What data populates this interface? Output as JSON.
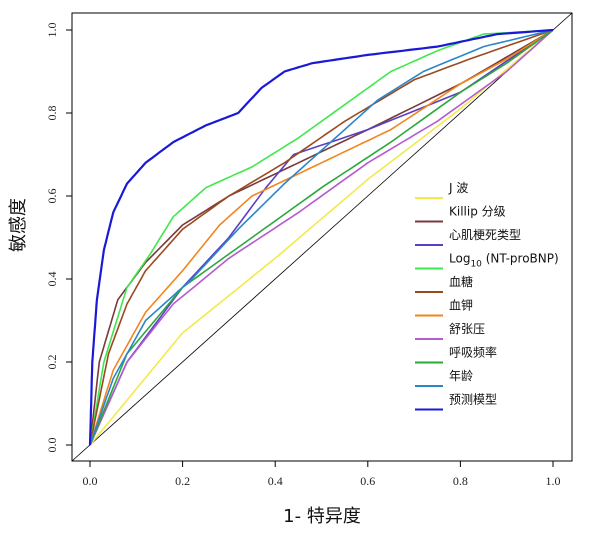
{
  "chart_data": {
    "type": "line",
    "xlabel": "1- 特异度",
    "ylabel": "敏感度",
    "xlim": [
      0,
      1
    ],
    "ylim": [
      0,
      1
    ],
    "x_ticks": [
      "0.0",
      "0.2",
      "0.4",
      "0.6",
      "0.8",
      "1.0"
    ],
    "y_ticks": [
      "0.0",
      "0.2",
      "0.4",
      "0.6",
      "0.8",
      "1.0"
    ],
    "reference_line": true,
    "grid": false,
    "legend_position": "bottom-right",
    "series": [
      {
        "name": "J 波",
        "color": "#f2ea4b",
        "points": [
          [
            0,
            0
          ],
          [
            0.2,
            0.27
          ],
          [
            0.4,
            0.45
          ],
          [
            0.6,
            0.64
          ],
          [
            0.8,
            0.81
          ],
          [
            1,
            1
          ]
        ]
      },
      {
        "name": "Killip 分级",
        "color": "#7a3a3c",
        "points": [
          [
            0,
            0
          ],
          [
            0.02,
            0.2
          ],
          [
            0.06,
            0.35
          ],
          [
            0.12,
            0.44
          ],
          [
            0.2,
            0.53
          ],
          [
            0.3,
            0.6
          ],
          [
            0.45,
            0.68
          ],
          [
            0.6,
            0.76
          ],
          [
            0.8,
            0.87
          ],
          [
            1,
            1
          ]
        ]
      },
      {
        "name": "心肌梗死类型",
        "color": "#5b3fc4",
        "points": [
          [
            0,
            0
          ],
          [
            0.08,
            0.2
          ],
          [
            0.2,
            0.38
          ],
          [
            0.3,
            0.5
          ],
          [
            0.38,
            0.62
          ],
          [
            0.44,
            0.7
          ],
          [
            0.6,
            0.76
          ],
          [
            0.8,
            0.85
          ],
          [
            1,
            1
          ]
        ]
      },
      {
        "name": "Log10 (NT-proBNP)",
        "name_main": "Log",
        "name_sub": "10",
        "name_tail": " (NT-proBNP)",
        "color": "#3fe84c",
        "points": [
          [
            0,
            0
          ],
          [
            0.03,
            0.2
          ],
          [
            0.08,
            0.38
          ],
          [
            0.13,
            0.46
          ],
          [
            0.18,
            0.55
          ],
          [
            0.25,
            0.62
          ],
          [
            0.35,
            0.67
          ],
          [
            0.45,
            0.74
          ],
          [
            0.55,
            0.82
          ],
          [
            0.65,
            0.9
          ],
          [
            0.75,
            0.95
          ],
          [
            0.85,
            0.99
          ],
          [
            1,
            1
          ]
        ]
      },
      {
        "name": "血糖",
        "color": "#9a4a1e",
        "points": [
          [
            0,
            0
          ],
          [
            0.04,
            0.22
          ],
          [
            0.08,
            0.34
          ],
          [
            0.12,
            0.42
          ],
          [
            0.2,
            0.52
          ],
          [
            0.3,
            0.6
          ],
          [
            0.42,
            0.68
          ],
          [
            0.55,
            0.78
          ],
          [
            0.7,
            0.88
          ],
          [
            0.82,
            0.93
          ],
          [
            1,
            1
          ]
        ]
      },
      {
        "name": "血钾",
        "color": "#f2851e",
        "points": [
          [
            0,
            0
          ],
          [
            0.05,
            0.18
          ],
          [
            0.12,
            0.32
          ],
          [
            0.2,
            0.42
          ],
          [
            0.28,
            0.53
          ],
          [
            0.35,
            0.6
          ],
          [
            0.5,
            0.68
          ],
          [
            0.65,
            0.76
          ],
          [
            0.8,
            0.87
          ],
          [
            0.9,
            0.93
          ],
          [
            1,
            1
          ]
        ]
      },
      {
        "name": "舒张压",
        "color": "#b45bd0",
        "points": [
          [
            0,
            0
          ],
          [
            0.08,
            0.2
          ],
          [
            0.18,
            0.34
          ],
          [
            0.3,
            0.45
          ],
          [
            0.45,
            0.56
          ],
          [
            0.6,
            0.68
          ],
          [
            0.75,
            0.78
          ],
          [
            0.9,
            0.9
          ],
          [
            1,
            1
          ]
        ]
      },
      {
        "name": "呼吸频率",
        "color": "#2aa83a",
        "points": [
          [
            0,
            0
          ],
          [
            0.08,
            0.22
          ],
          [
            0.2,
            0.38
          ],
          [
            0.35,
            0.5
          ],
          [
            0.5,
            0.62
          ],
          [
            0.65,
            0.73
          ],
          [
            0.8,
            0.85
          ],
          [
            0.9,
            0.92
          ],
          [
            1,
            1
          ]
        ]
      },
      {
        "name": "年龄",
        "color": "#2a86c9",
        "points": [
          [
            0,
            0
          ],
          [
            0.05,
            0.16
          ],
          [
            0.12,
            0.3
          ],
          [
            0.22,
            0.4
          ],
          [
            0.32,
            0.52
          ],
          [
            0.42,
            0.63
          ],
          [
            0.52,
            0.73
          ],
          [
            0.62,
            0.83
          ],
          [
            0.72,
            0.9
          ],
          [
            0.85,
            0.96
          ],
          [
            1,
            1
          ]
        ]
      },
      {
        "name": "预测模型",
        "color": "#1a1ad6",
        "points": [
          [
            0,
            0
          ],
          [
            0.005,
            0.2
          ],
          [
            0.015,
            0.35
          ],
          [
            0.03,
            0.47
          ],
          [
            0.05,
            0.56
          ],
          [
            0.08,
            0.63
          ],
          [
            0.12,
            0.68
          ],
          [
            0.18,
            0.73
          ],
          [
            0.25,
            0.77
          ],
          [
            0.32,
            0.8
          ],
          [
            0.37,
            0.86
          ],
          [
            0.42,
            0.9
          ],
          [
            0.48,
            0.92
          ],
          [
            0.6,
            0.94
          ],
          [
            0.75,
            0.96
          ],
          [
            0.88,
            0.99
          ],
          [
            1,
            1
          ]
        ]
      }
    ]
  }
}
